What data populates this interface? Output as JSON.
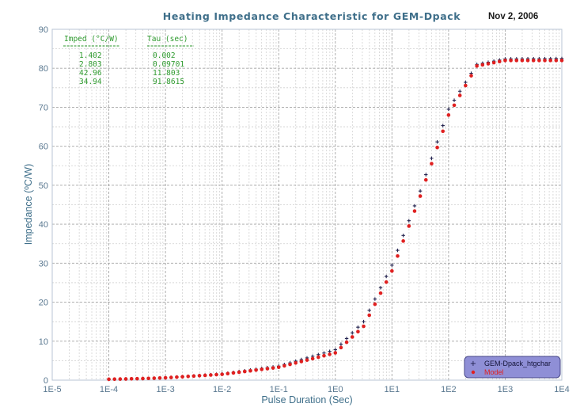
{
  "chart_data": {
    "type": "scatter",
    "title": "Heating Impedance Characteristic for GEM-Dpack",
    "date": "Nov 2, 2006",
    "xlabel": "Pulse Duration (Sec)",
    "ylabel": "Impedance (ºC/W)",
    "xscale": "log",
    "xlim": [
      1e-05,
      10000
    ],
    "ylim": [
      0,
      90
    ],
    "x_tick_values": [
      1e-05,
      0.0001,
      0.001,
      0.01,
      0.1,
      1,
      10,
      100,
      1000,
      10000
    ],
    "x_tick_labels": [
      "1E-5",
      "1E-4",
      "1E-3",
      "1E-2",
      "1E-1",
      "1E0",
      "1E1",
      "1E2",
      "1E3",
      "1E4"
    ],
    "y_tick_values": [
      0,
      10,
      20,
      30,
      40,
      50,
      60,
      70,
      80,
      90
    ],
    "y_tick_labels": [
      "0",
      "10",
      "20",
      "30",
      "40",
      "50",
      "60",
      "70",
      "80",
      "90"
    ],
    "grid": true,
    "legend_position": "bottom-right",
    "param_table": {
      "headers": [
        "Imped (°C/W)",
        "Tau (sec)"
      ],
      "rows": [
        [
          "1.402",
          "0.002"
        ],
        [
          "2.803",
          "0.09701"
        ],
        [
          "42.96",
          "11.803"
        ],
        [
          "34.94",
          "91.8615"
        ]
      ]
    },
    "series": [
      {
        "name": "GEM-Dpack_htgchar",
        "marker": "plus",
        "color": "#23234f",
        "x_range": [
          0.0001,
          10000
        ],
        "n_points": 81,
        "source": "measured",
        "points": [
          [
            0.001,
            0.6
          ],
          [
            0.01,
            1.6
          ],
          [
            0.1,
            3.6
          ],
          [
            1,
            7.8
          ],
          [
            3.16,
            15.0
          ],
          [
            10,
            29.5
          ],
          [
            31.6,
            48.5
          ],
          [
            100,
            69.5
          ],
          [
            316,
            81.0
          ],
          [
            1000,
            82.4
          ],
          [
            10000,
            82.5
          ]
        ]
      },
      {
        "name": "Model",
        "marker": "dot",
        "color": "#e02020",
        "x_range": [
          0.0001,
          10000
        ],
        "n_points": 81,
        "source": "model",
        "points": [
          [
            0.001,
            0.6
          ],
          [
            0.01,
            1.5
          ],
          [
            0.1,
            3.3
          ],
          [
            1,
            7.0
          ],
          [
            3.16,
            13.8
          ],
          [
            10,
            28.0
          ],
          [
            31.6,
            47.2
          ],
          [
            100,
            68.0
          ],
          [
            316,
            80.6
          ],
          [
            1000,
            82.0
          ],
          [
            10000,
            82.0
          ]
        ]
      }
    ]
  }
}
